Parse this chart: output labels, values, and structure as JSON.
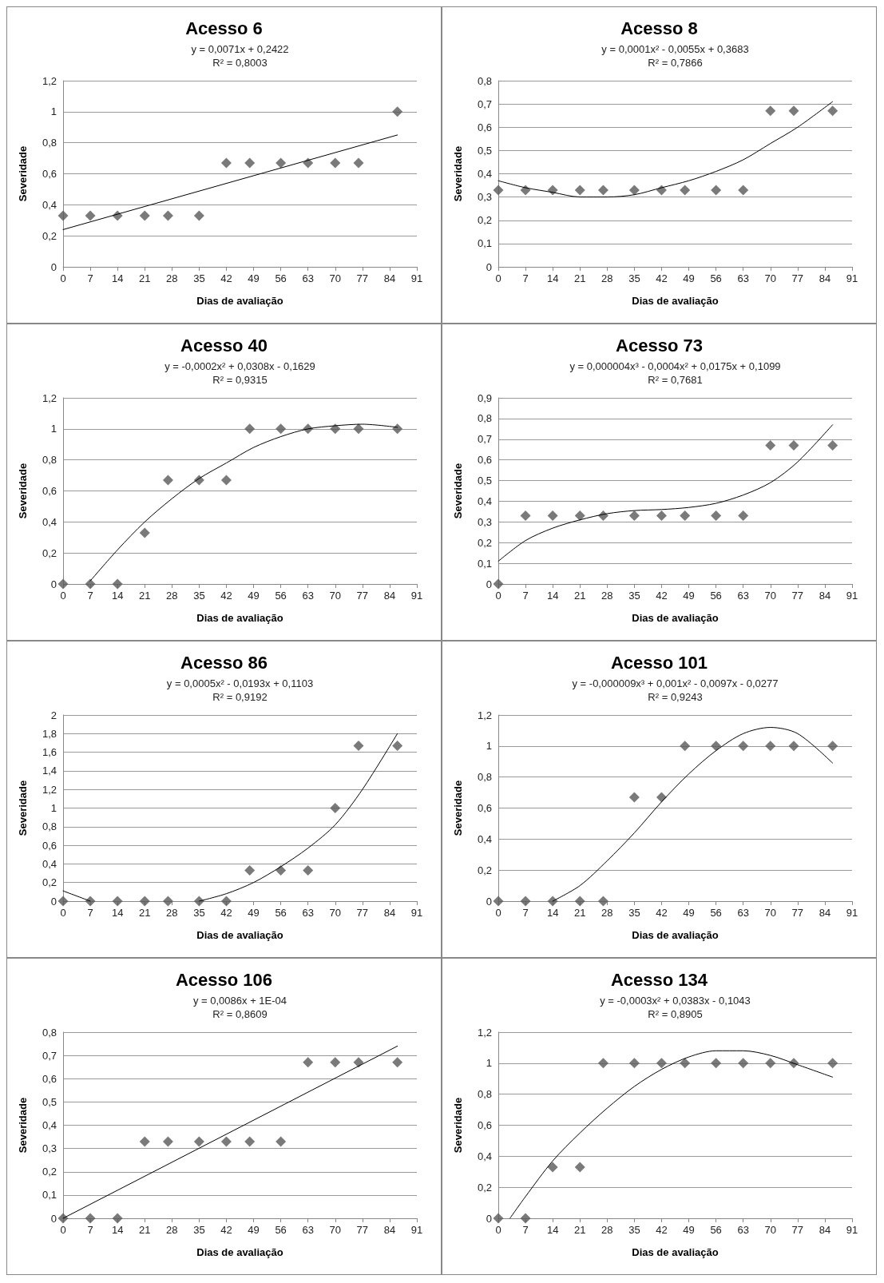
{
  "chart_data": [
    {
      "type": "scatter",
      "title": "Acesso 6",
      "xlabel": "Dias de avaliação",
      "ylabel": "Severidade",
      "x": [
        0,
        7,
        14,
        21,
        27,
        35,
        42,
        48,
        56,
        63,
        70,
        76,
        86
      ],
      "xlim": [
        0,
        91
      ],
      "xticks": [
        0,
        7,
        14,
        21,
        28,
        35,
        42,
        49,
        56,
        63,
        70,
        77,
        84,
        91
      ],
      "ylim": [
        0,
        1.2
      ],
      "yticks": [
        0,
        {
          "value": 0.2,
          "label": "0,2"
        },
        {
          "value": 0.4,
          "label": "0,4"
        },
        {
          "value": 0.6,
          "label": "0,6"
        },
        {
          "value": 0.8,
          "label": "0,8"
        },
        1,
        {
          "value": 1.2,
          "label": "1,2"
        }
      ],
      "grid": "y",
      "marker": "diamond",
      "series": [
        {
          "type": "scatter",
          "color": "#595959",
          "values": [
            0.33,
            0.33,
            0.33,
            0.33,
            0.33,
            0.33,
            0.67,
            0.67,
            0.67,
            0.67,
            0.67,
            0.67,
            1
          ]
        },
        {
          "type": "line",
          "marker": "none",
          "color": "#000000",
          "x": [
            0,
            86
          ],
          "values": [
            0.24,
            0.85
          ]
        }
      ],
      "annotations": [
        "y = 0,0071x + 0,2422",
        "R² = 0,8003"
      ]
    },
    {
      "type": "scatter",
      "title": "Acesso 8",
      "xlabel": "Dias de avaliação",
      "ylabel": "Severidade",
      "x": [
        0,
        7,
        14,
        21,
        27,
        35,
        42,
        48,
        56,
        63,
        70,
        76,
        86
      ],
      "xlim": [
        0,
        91
      ],
      "xticks": [
        0,
        7,
        14,
        21,
        28,
        35,
        42,
        49,
        56,
        63,
        70,
        77,
        84,
        91
      ],
      "ylim": [
        0,
        0.8
      ],
      "yticks": [
        0,
        {
          "value": 0.1,
          "label": "0,1"
        },
        {
          "value": 0.2,
          "label": "0,2"
        },
        {
          "value": 0.3,
          "label": "0,3"
        },
        {
          "value": 0.4,
          "label": "0,4"
        },
        {
          "value": 0.5,
          "label": "0,5"
        },
        {
          "value": 0.6,
          "label": "0,6"
        },
        {
          "value": 0.7,
          "label": "0,7"
        },
        {
          "value": 0.8,
          "label": "0,8"
        }
      ],
      "grid": "y",
      "marker": "diamond",
      "series": [
        {
          "type": "scatter",
          "color": "#595959",
          "values": [
            0.33,
            0.33,
            0.33,
            0.33,
            0.33,
            0.33,
            0.33,
            0.33,
            0.33,
            0.33,
            0.67,
            0.67,
            0.67
          ]
        },
        {
          "type": "line",
          "marker": "none",
          "color": "#000000",
          "x": [
            0,
            7,
            14,
            21,
            28,
            35,
            42,
            49,
            56,
            63,
            70,
            77,
            86
          ],
          "values": [
            0.37,
            0.34,
            0.32,
            0.3,
            0.3,
            0.31,
            0.34,
            0.37,
            0.41,
            0.46,
            0.53,
            0.6,
            0.71
          ]
        }
      ],
      "annotations": [
        "y = 0,0001x² - 0,0055x + 0,3683",
        "R² = 0,7866"
      ]
    },
    {
      "type": "scatter",
      "title": "Acesso 40",
      "xlabel": "Dias de avaliação",
      "ylabel": "Severidade",
      "x": [
        0,
        7,
        14,
        21,
        27,
        35,
        42,
        48,
        56,
        63,
        70,
        76,
        86
      ],
      "xlim": [
        0,
        91
      ],
      "xticks": [
        0,
        7,
        14,
        21,
        28,
        35,
        42,
        49,
        56,
        63,
        70,
        77,
        84,
        91
      ],
      "ylim": [
        0,
        1.2
      ],
      "yticks": [
        0,
        {
          "value": 0.2,
          "label": "0,2"
        },
        {
          "value": 0.4,
          "label": "0,4"
        },
        {
          "value": 0.6,
          "label": "0,6"
        },
        {
          "value": 0.8,
          "label": "0,8"
        },
        1,
        {
          "value": 1.2,
          "label": "1,2"
        }
      ],
      "grid": "y",
      "marker": "diamond",
      "series": [
        {
          "type": "scatter",
          "color": "#595959",
          "values": [
            0,
            0,
            0,
            0.33,
            0.67,
            0.67,
            0.67,
            1,
            1,
            1,
            1,
            1,
            1
          ]
        },
        {
          "type": "line",
          "marker": "none",
          "color": "#000000",
          "x": [
            7,
            14,
            21,
            28,
            35,
            42,
            49,
            56,
            63,
            70,
            77,
            86
          ],
          "values": [
            0.02,
            0.22,
            0.4,
            0.55,
            0.68,
            0.78,
            0.88,
            0.95,
            1,
            1.02,
            1.03,
            1.01
          ]
        }
      ],
      "annotations": [
        "y = -0,0002x² + 0,0308x - 0,1629",
        "R² = 0,9315"
      ]
    },
    {
      "type": "scatter",
      "title": "Acesso 73",
      "xlabel": "Dias de avaliação",
      "ylabel": "Severidade",
      "x": [
        0,
        7,
        14,
        21,
        27,
        35,
        42,
        48,
        56,
        63,
        70,
        76,
        86
      ],
      "xlim": [
        0,
        91
      ],
      "xticks": [
        0,
        7,
        14,
        21,
        28,
        35,
        42,
        49,
        56,
        63,
        70,
        77,
        84,
        91
      ],
      "ylim": [
        0,
        0.9
      ],
      "yticks": [
        0,
        {
          "value": 0.1,
          "label": "0,1"
        },
        {
          "value": 0.2,
          "label": "0,2"
        },
        {
          "value": 0.3,
          "label": "0,3"
        },
        {
          "value": 0.4,
          "label": "0,4"
        },
        {
          "value": 0.5,
          "label": "0,5"
        },
        {
          "value": 0.6,
          "label": "0,6"
        },
        {
          "value": 0.7,
          "label": "0,7"
        },
        {
          "value": 0.8,
          "label": "0,8"
        },
        {
          "value": 0.9,
          "label": "0,9"
        }
      ],
      "grid": "y",
      "marker": "diamond",
      "series": [
        {
          "type": "scatter",
          "color": "#595959",
          "values": [
            0,
            0.33,
            0.33,
            0.33,
            0.33,
            0.33,
            0.33,
            0.33,
            0.33,
            0.33,
            0.67,
            0.67,
            0.67
          ]
        },
        {
          "type": "line",
          "marker": "none",
          "color": "#000000",
          "x": [
            0,
            7,
            14,
            21,
            28,
            35,
            42,
            49,
            56,
            63,
            70,
            77,
            86
          ],
          "values": [
            0.11,
            0.21,
            0.27,
            0.31,
            0.34,
            0.355,
            0.36,
            0.37,
            0.39,
            0.43,
            0.49,
            0.59,
            0.77
          ]
        }
      ],
      "annotations": [
        "y = 0,000004x³ - 0,0004x² + 0,0175x + 0,1099",
        "R² = 0,7681"
      ]
    },
    {
      "type": "scatter",
      "title": "Acesso 86",
      "xlabel": "Dias de avaliação",
      "ylabel": "Severidade",
      "x": [
        0,
        7,
        14,
        21,
        27,
        35,
        42,
        48,
        56,
        63,
        70,
        76,
        86
      ],
      "xlim": [
        0,
        91
      ],
      "xticks": [
        0,
        7,
        14,
        21,
        28,
        35,
        42,
        49,
        56,
        63,
        70,
        77,
        84,
        91
      ],
      "ylim": [
        0,
        2
      ],
      "yticks": [
        0,
        {
          "value": 0.2,
          "label": "0,2"
        },
        {
          "value": 0.4,
          "label": "0,4"
        },
        {
          "value": 0.6,
          "label": "0,6"
        },
        {
          "value": 0.8,
          "label": "0,8"
        },
        1,
        {
          "value": 1.2,
          "label": "1,2"
        },
        {
          "value": 1.4,
          "label": "1,4"
        },
        {
          "value": 1.6,
          "label": "1,6"
        },
        {
          "value": 1.8,
          "label": "1,8"
        },
        2
      ],
      "grid": "y",
      "marker": "diamond",
      "series": [
        {
          "type": "scatter",
          "color": "#595959",
          "values": [
            0,
            0,
            0,
            0,
            0,
            0,
            0,
            0.33,
            0.33,
            0.33,
            1,
            1.67,
            1.67
          ]
        },
        {
          "type": "line",
          "marker": "none",
          "color": "#000000",
          "x": [
            0,
            7,
            14,
            21,
            28,
            35,
            42,
            49,
            56,
            63,
            70,
            77,
            86
          ],
          "values": [
            0.11,
            0,
            null,
            null,
            null,
            0,
            0.08,
            0.2,
            0.37,
            0.57,
            0.82,
            1.2,
            1.8
          ]
        }
      ],
      "annotations": [
        "y = 0,0005x² - 0,0193x + 0,1103",
        "R² = 0,9192"
      ]
    },
    {
      "type": "scatter",
      "title": "Acesso 101",
      "xlabel": "Dias de avaliação",
      "ylabel": "Severidade",
      "x": [
        0,
        7,
        14,
        21,
        27,
        35,
        42,
        48,
        56,
        63,
        70,
        76,
        86
      ],
      "xlim": [
        0,
        91
      ],
      "xticks": [
        0,
        7,
        14,
        21,
        28,
        35,
        42,
        49,
        56,
        63,
        70,
        77,
        84,
        91
      ],
      "ylim": [
        0,
        1.2
      ],
      "yticks": [
        0,
        {
          "value": 0.2,
          "label": "0,2"
        },
        {
          "value": 0.4,
          "label": "0,4"
        },
        {
          "value": 0.6,
          "label": "0,6"
        },
        {
          "value": 0.8,
          "label": "0,8"
        },
        1,
        {
          "value": 1.2,
          "label": "1,2"
        }
      ],
      "grid": "y",
      "marker": "diamond",
      "series": [
        {
          "type": "scatter",
          "color": "#595959",
          "values": [
            0,
            0,
            0,
            0,
            0,
            0.67,
            0.67,
            1,
            1,
            1,
            1,
            1,
            1
          ]
        },
        {
          "type": "line",
          "marker": "none",
          "color": "#000000",
          "x": [
            14,
            21,
            28,
            35,
            42,
            49,
            56,
            63,
            70,
            77,
            86
          ],
          "values": [
            0,
            0.1,
            0.26,
            0.44,
            0.64,
            0.82,
            0.97,
            1.08,
            1.12,
            1.08,
            0.89
          ]
        }
      ],
      "annotations": [
        "y = -0,000009x³ + 0,001x² - 0,0097x - 0,0277",
        "R² = 0,9243"
      ]
    },
    {
      "type": "scatter",
      "title": "Acesso 106",
      "xlabel": "Dias de avaliação",
      "ylabel": "Severidade",
      "x": [
        0,
        7,
        14,
        21,
        27,
        35,
        42,
        48,
        56,
        63,
        70,
        76,
        86
      ],
      "xlim": [
        0,
        91
      ],
      "xticks": [
        0,
        7,
        14,
        21,
        28,
        35,
        42,
        49,
        56,
        63,
        70,
        77,
        84,
        91
      ],
      "ylim": [
        0,
        0.8
      ],
      "yticks": [
        0,
        {
          "value": 0.1,
          "label": "0,1"
        },
        {
          "value": 0.2,
          "label": "0,2"
        },
        {
          "value": 0.3,
          "label": "0,3"
        },
        {
          "value": 0.4,
          "label": "0,4"
        },
        {
          "value": 0.5,
          "label": "0,5"
        },
        {
          "value": 0.6,
          "label": "0,6"
        },
        {
          "value": 0.7,
          "label": "0,7"
        },
        {
          "value": 0.8,
          "label": "0,8"
        }
      ],
      "grid": "y",
      "marker": "diamond",
      "series": [
        {
          "type": "scatter",
          "color": "#595959",
          "values": [
            0,
            0,
            0,
            0.33,
            0.33,
            0.33,
            0.33,
            0.33,
            0.33,
            0.67,
            0.67,
            0.67,
            0.67
          ]
        },
        {
          "type": "line",
          "marker": "none",
          "color": "#000000",
          "x": [
            0,
            86
          ],
          "values": [
            0,
            0.74
          ]
        }
      ],
      "annotations": [
        "y = 0,0086x + 1E-04",
        "R² = 0,8609"
      ]
    },
    {
      "type": "scatter",
      "title": "Acesso 134",
      "xlabel": "Dias de avaliação",
      "ylabel": "Severidade",
      "x": [
        0,
        7,
        14,
        21,
        27,
        35,
        42,
        48,
        56,
        63,
        70,
        76,
        86
      ],
      "xlim": [
        0,
        91
      ],
      "xticks": [
        0,
        7,
        14,
        21,
        28,
        35,
        42,
        49,
        56,
        63,
        70,
        77,
        84,
        91
      ],
      "ylim": [
        0,
        1.2
      ],
      "yticks": [
        0,
        {
          "value": 0.2,
          "label": "0,2"
        },
        {
          "value": 0.4,
          "label": "0,4"
        },
        {
          "value": 0.6,
          "label": "0,6"
        },
        {
          "value": 0.8,
          "label": "0,8"
        },
        1,
        {
          "value": 1.2,
          "label": "1,2"
        }
      ],
      "grid": "y",
      "marker": "diamond",
      "series": [
        {
          "type": "scatter",
          "color": "#595959",
          "values": [
            0,
            0,
            0.33,
            0.33,
            1,
            1,
            1,
            1,
            1,
            1,
            1,
            1,
            1
          ]
        },
        {
          "type": "line",
          "marker": "none",
          "color": "#000000",
          "x": [
            3,
            7,
            14,
            21,
            28,
            35,
            42,
            49,
            56,
            63,
            70,
            77,
            86
          ],
          "values": [
            0,
            0.14,
            0.37,
            0.55,
            0.71,
            0.85,
            0.96,
            1.04,
            1.08,
            1.08,
            1.05,
            0.99,
            0.91
          ]
        }
      ],
      "annotations": [
        "y = -0,0003x² + 0,0383x - 0,1043",
        "R² = 0,8905"
      ]
    }
  ]
}
